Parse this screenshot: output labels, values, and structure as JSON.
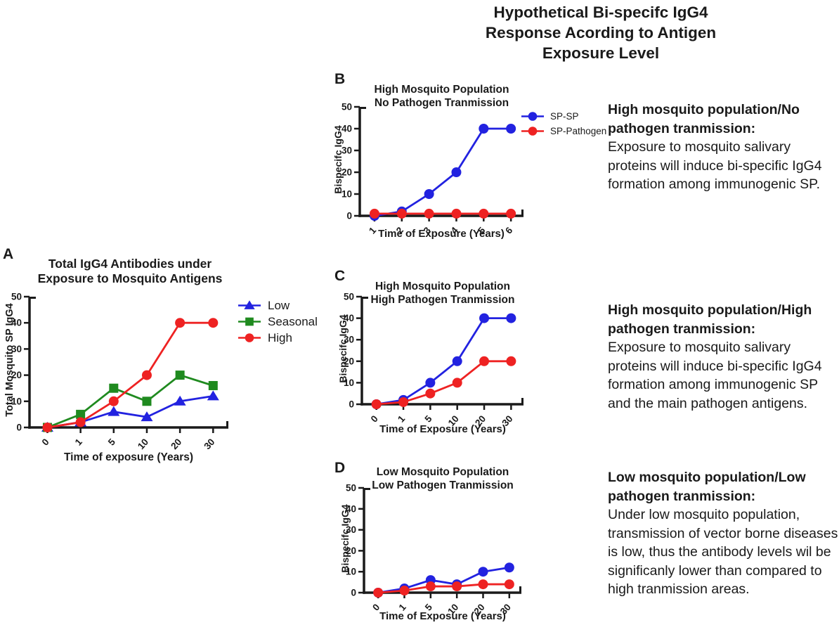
{
  "main_title": {
    "lines": [
      "Hypothetical Bi-specifc IgG4",
      "Response Acording to Antigen",
      "Exposure Level"
    ]
  },
  "colors": {
    "blue": "#2222E0",
    "green": "#1F8A1F",
    "red": "#EE2222",
    "axis": "#1A1A1A"
  },
  "chart_data": [
    {
      "type": "line",
      "panel_label": "A",
      "title": [
        "Total IgG4 Antibodies under",
        "Exposure to Mosquito Antigens"
      ],
      "ylabel": "Total Mosquito SP IgG4",
      "xlabel": "Time of exposure (Years)",
      "ylim": [
        0,
        50
      ],
      "yticks": [
        0,
        10,
        20,
        30,
        40,
        50
      ],
      "categories": [
        "0",
        "1",
        "5",
        "10",
        "20",
        "30"
      ],
      "legend_position": "right",
      "grid": false,
      "series": [
        {
          "name": "Low",
          "marker": "triangle",
          "color_key": "blue",
          "values": [
            0,
            2,
            6,
            4,
            10,
            12
          ]
        },
        {
          "name": "Seasonal",
          "marker": "square",
          "color_key": "green",
          "values": [
            0,
            5,
            15,
            10,
            20,
            16
          ]
        },
        {
          "name": "High",
          "marker": "circle",
          "color_key": "red",
          "values": [
            0,
            2,
            10,
            20,
            40,
            40
          ]
        }
      ]
    },
    {
      "type": "line",
      "panel_label": "B",
      "title": [
        "High Mosquito Population",
        "No Pathogen Tranmission"
      ],
      "ylabel": "Bispecifc IgG4",
      "xlabel": "Time of Exposure (Years)",
      "ylim": [
        0,
        50
      ],
      "yticks": [
        0,
        10,
        20,
        30,
        40,
        50
      ],
      "categories": [
        "1",
        "2",
        "3",
        "4",
        "5",
        "6"
      ],
      "legend_position": "right",
      "grid": false,
      "series": [
        {
          "name": "SP-SP",
          "marker": "circle",
          "color_key": "blue",
          "values": [
            0,
            2,
            10,
            20,
            40,
            40
          ]
        },
        {
          "name": "SP-Pathogen",
          "marker": "circle",
          "color_key": "red",
          "values": [
            1,
            1,
            1,
            1,
            1,
            1
          ]
        }
      ]
    },
    {
      "type": "line",
      "panel_label": "C",
      "title": [
        "High Mosquito Population",
        "High Pathogen Tranmission"
      ],
      "ylabel": "Bispecifc IgG4",
      "xlabel": "Time of Exposure (Years)",
      "ylim": [
        0,
        50
      ],
      "yticks": [
        0,
        10,
        20,
        30,
        40,
        50
      ],
      "categories": [
        "0",
        "1",
        "5",
        "10",
        "20",
        "30"
      ],
      "legend_position": "none",
      "grid": false,
      "series": [
        {
          "name": "SP-SP",
          "marker": "circle",
          "color_key": "blue",
          "values": [
            0,
            2,
            10,
            20,
            40,
            40
          ]
        },
        {
          "name": "SP-Pathogen",
          "marker": "circle",
          "color_key": "red",
          "values": [
            0,
            1,
            5,
            10,
            20,
            20
          ]
        }
      ]
    },
    {
      "type": "line",
      "panel_label": "D",
      "title": [
        "Low Mosquito Population",
        "Low Pathogen Tranmission"
      ],
      "ylabel": "Bispecifc IgG4",
      "xlabel": "Time of Exposure (Years)",
      "ylim": [
        0,
        50
      ],
      "yticks": [
        0,
        10,
        20,
        30,
        40,
        50
      ],
      "categories": [
        "0",
        "1",
        "5",
        "10",
        "20",
        "30"
      ],
      "legend_position": "none",
      "grid": false,
      "series": [
        {
          "name": "SP-SP",
          "marker": "circle",
          "color_key": "blue",
          "values": [
            0,
            2,
            6,
            4,
            10,
            12
          ]
        },
        {
          "name": "SP-Pathogen",
          "marker": "circle",
          "color_key": "red",
          "values": [
            0,
            1,
            3,
            3,
            4,
            4
          ]
        }
      ]
    }
  ],
  "annotations": [
    {
      "heading": "High mosquito population/No pathogen tranmission:",
      "body": "Exposure to mosquito salivary proteins will induce bi-specific IgG4 formation among immunogenic SP."
    },
    {
      "heading": "High mosquito population/High pathogen tranmission:",
      "body": "Exposure to mosquito salivary proteins will induce bi-specific IgG4 formation among immunogenic SP and the main pathogen antigens."
    },
    {
      "heading": "Low mosquito population/Low pathogen tranmission:",
      "body": "Under low mosquito population, transmission of vector borne diseases is low, thus the antibody levels wil be significanly lower than compared to high tranmission areas."
    }
  ]
}
